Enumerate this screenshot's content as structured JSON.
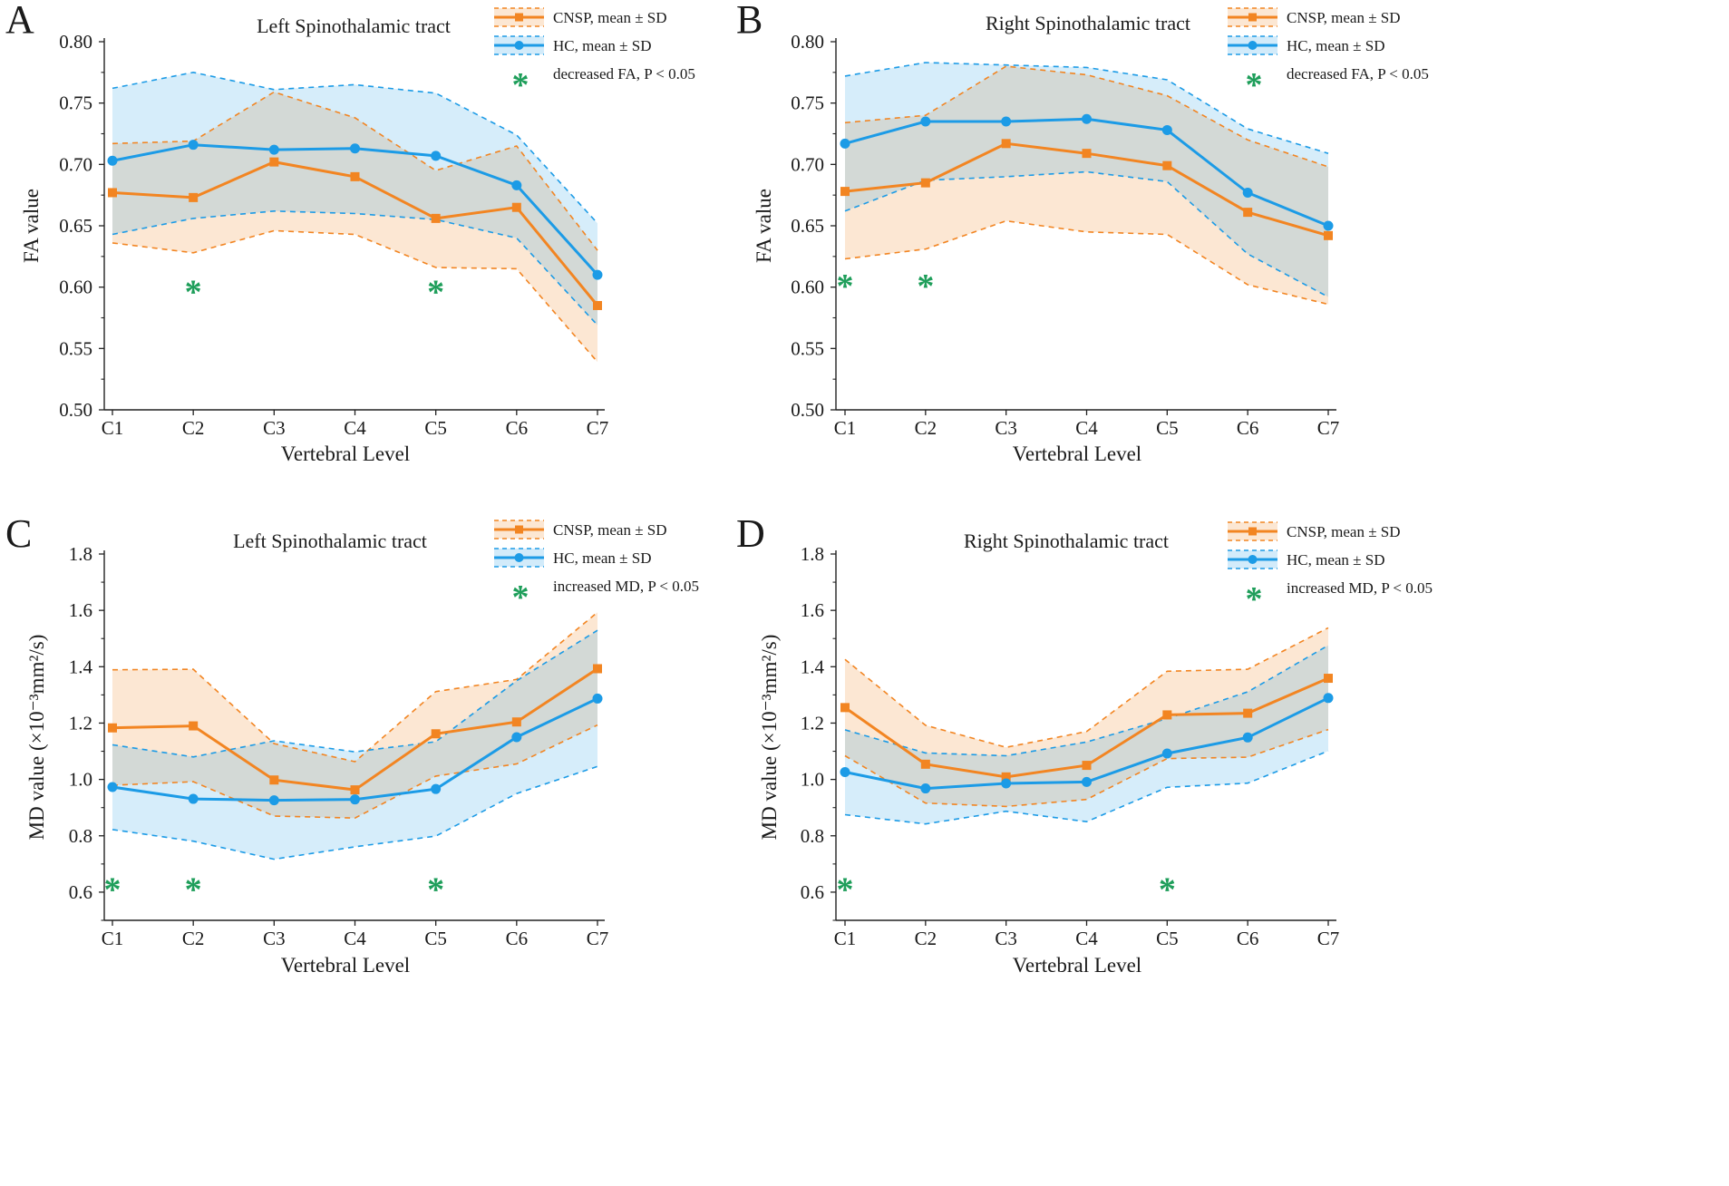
{
  "chart_data": [
    {
      "panel": "A",
      "type": "line",
      "title": "Left Spinothalamic tract",
      "xlabel": "Vertebral Level",
      "ylabel": "FA value",
      "categories": [
        "C1",
        "C2",
        "C3",
        "C4",
        "C5",
        "C6",
        "C7"
      ],
      "ylim": [
        0.5,
        0.8
      ],
      "yticks": [
        0.5,
        0.55,
        0.6,
        0.65,
        0.7,
        0.75,
        0.8
      ],
      "yticks_text": [
        "0.50",
        "0.55",
        "0.60",
        "0.65",
        "0.70",
        "0.75",
        "0.80"
      ],
      "series": [
        {
          "name": "CNSP, mean ± SD",
          "color": "#F28522",
          "marker": "square",
          "values": [
            0.677,
            0.673,
            0.702,
            0.69,
            0.656,
            0.665,
            0.585
          ],
          "upper": [
            0.717,
            0.719,
            0.759,
            0.738,
            0.695,
            0.715,
            0.63
          ],
          "lower": [
            0.636,
            0.628,
            0.646,
            0.643,
            0.616,
            0.615,
            0.539
          ]
        },
        {
          "name": "HC, mean ± SD",
          "color": "#1C9BE6",
          "marker": "circle",
          "values": [
            0.703,
            0.716,
            0.712,
            0.713,
            0.707,
            0.683,
            0.61
          ],
          "upper": [
            0.762,
            0.775,
            0.761,
            0.765,
            0.758,
            0.724,
            0.652
          ],
          "lower": [
            0.643,
            0.656,
            0.662,
            0.66,
            0.655,
            0.64,
            0.569
          ]
        }
      ],
      "significance": {
        "label": "decreased FA, P < 0.05",
        "color": "#1E9E5A",
        "symbol": "*",
        "levels": [
          "C2",
          "C5"
        ],
        "y": 0.603
      }
    },
    {
      "panel": "B",
      "type": "line",
      "title": "Right Spinothalamic tract",
      "xlabel": "Vertebral Level",
      "ylabel": "FA value",
      "categories": [
        "C1",
        "C2",
        "C3",
        "C4",
        "C5",
        "C6",
        "C7"
      ],
      "ylim": [
        0.5,
        0.8
      ],
      "yticks": [
        0.5,
        0.55,
        0.6,
        0.65,
        0.7,
        0.75,
        0.8
      ],
      "yticks_text": [
        "0.50",
        "0.55",
        "0.60",
        "0.65",
        "0.70",
        "0.75",
        "0.80"
      ],
      "series": [
        {
          "name": "CNSP, mean ± SD",
          "color": "#F28522",
          "marker": "square",
          "values": [
            0.678,
            0.685,
            0.717,
            0.709,
            0.699,
            0.661,
            0.642
          ],
          "upper": [
            0.734,
            0.74,
            0.78,
            0.773,
            0.756,
            0.72,
            0.698
          ],
          "lower": [
            0.623,
            0.631,
            0.654,
            0.645,
            0.643,
            0.602,
            0.586
          ]
        },
        {
          "name": "HC, mean ± SD",
          "color": "#1C9BE6",
          "marker": "circle",
          "values": [
            0.717,
            0.735,
            0.735,
            0.737,
            0.728,
            0.677,
            0.65
          ],
          "upper": [
            0.772,
            0.783,
            0.781,
            0.779,
            0.769,
            0.729,
            0.709
          ],
          "lower": [
            0.662,
            0.687,
            0.69,
            0.694,
            0.686,
            0.627,
            0.592
          ]
        }
      ],
      "significance": {
        "label": "decreased FA, P < 0.05",
        "color": "#1E9E5A",
        "symbol": "*",
        "levels": [
          "C1",
          "C2"
        ],
        "y": 0.608
      }
    },
    {
      "panel": "C",
      "type": "line",
      "title": "Left Spinothalamic tract",
      "xlabel": "Vertebral Level",
      "ylabel": "MD value (×10⁻³mm²/s)",
      "categories": [
        "C1",
        "C2",
        "C3",
        "C4",
        "C5",
        "C6",
        "C7"
      ],
      "ylim": [
        0.5,
        1.8
      ],
      "yticks": [
        0.6,
        0.8,
        1.0,
        1.2,
        1.4,
        1.6,
        1.8
      ],
      "yticks_text": [
        "0.6",
        "0.8",
        "1.0",
        "1.2",
        "1.4",
        "1.6",
        "1.8"
      ],
      "series": [
        {
          "name": "CNSP, mean ± SD",
          "color": "#F28522",
          "marker": "square",
          "values": [
            1.183,
            1.19,
            0.998,
            0.963,
            1.162,
            1.204,
            1.393
          ],
          "upper": [
            1.389,
            1.391,
            1.127,
            1.063,
            1.312,
            1.355,
            1.593
          ],
          "lower": [
            0.979,
            0.992,
            0.87,
            0.863,
            1.012,
            1.055,
            1.193
          ]
        },
        {
          "name": "HC, mean ± SD",
          "color": "#1C9BE6",
          "marker": "circle",
          "values": [
            0.973,
            0.931,
            0.926,
            0.929,
            0.966,
            1.15,
            1.287
          ],
          "upper": [
            1.123,
            1.08,
            1.137,
            1.098,
            1.134,
            1.35,
            1.529
          ],
          "lower": [
            0.822,
            0.781,
            0.717,
            0.761,
            0.799,
            0.95,
            1.046
          ]
        }
      ],
      "significance": {
        "label": "increased MD, P < 0.05",
        "color": "#1E9E5A",
        "symbol": "*",
        "levels": [
          "C1",
          "C2",
          "C5"
        ],
        "y": 0.64
      }
    },
    {
      "panel": "D",
      "type": "line",
      "title": "Right Spinothalamic tract",
      "xlabel": "Vertebral Level",
      "ylabel": "MD value (×10⁻³mm²/s)",
      "categories": [
        "C1",
        "C2",
        "C3",
        "C4",
        "C5",
        "C6",
        "C7"
      ],
      "ylim": [
        0.5,
        1.8
      ],
      "yticks": [
        0.6,
        0.8,
        1.0,
        1.2,
        1.4,
        1.6,
        1.8
      ],
      "yticks_text": [
        "0.6",
        "0.8",
        "1.0",
        "1.2",
        "1.4",
        "1.6",
        "1.8"
      ],
      "series": [
        {
          "name": "CNSP, mean ± SD",
          "color": "#F28522",
          "marker": "square",
          "values": [
            1.255,
            1.054,
            1.009,
            1.05,
            1.229,
            1.235,
            1.359
          ],
          "upper": [
            1.426,
            1.192,
            1.114,
            1.17,
            1.384,
            1.391,
            1.538
          ],
          "lower": [
            1.084,
            0.916,
            0.904,
            0.929,
            1.074,
            1.079,
            1.177
          ]
        },
        {
          "name": "HC, mean ± SD",
          "color": "#1C9BE6",
          "marker": "circle",
          "values": [
            1.026,
            0.968,
            0.986,
            0.991,
            1.092,
            1.149,
            1.289
          ],
          "upper": [
            1.176,
            1.094,
            1.084,
            1.133,
            1.216,
            1.311,
            1.476
          ],
          "lower": [
            0.875,
            0.842,
            0.887,
            0.85,
            0.972,
            0.987,
            1.101
          ]
        }
      ],
      "significance": {
        "label": "increased MD, P < 0.05",
        "color": "#1E9E5A",
        "symbol": "*",
        "levels": [
          "C1",
          "C5"
        ],
        "y": 0.64
      }
    }
  ]
}
